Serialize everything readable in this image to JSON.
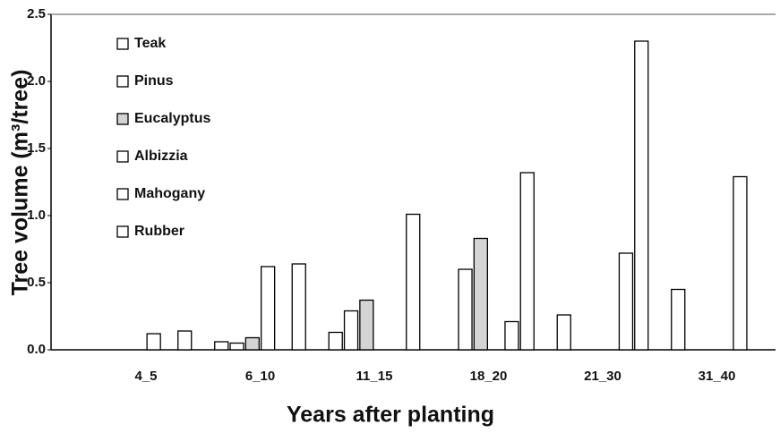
{
  "chart_data": {
    "type": "bar",
    "x_label": "Years after planting",
    "y_label": "Tree volume (m³/tree)",
    "categories": [
      "4_5",
      "6_10",
      "11_15",
      "18_20",
      "21_30",
      "31_40"
    ],
    "series": [
      {
        "name": "Teak",
        "color": "#ffffff",
        "values": [
          null,
          0.06,
          0.13,
          null,
          0.26,
          0.45
        ]
      },
      {
        "name": "Pinus",
        "color": "#ffffff",
        "values": [
          null,
          0.05,
          0.29,
          0.6,
          null,
          null
        ]
      },
      {
        "name": "Eucalyptus",
        "color": "#d4d4d4",
        "values": [
          null,
          0.09,
          0.37,
          0.83,
          null,
          null
        ]
      },
      {
        "name": "Albizzia",
        "color": "#ffffff",
        "values": [
          0.12,
          0.62,
          null,
          null,
          null,
          null
        ]
      },
      {
        "name": "Mahogany",
        "color": "#ffffff",
        "values": [
          null,
          null,
          null,
          0.21,
          0.72,
          1.29
        ]
      },
      {
        "name": "Rubber",
        "color": "#ffffff",
        "values": [
          0.14,
          0.64,
          1.01,
          1.32,
          2.3,
          null
        ]
      }
    ],
    "ylim": [
      0,
      2.5
    ],
    "yticks": [
      {
        "value": 0,
        "label": "0.0"
      },
      0.5,
      {
        "value": 1,
        "label": "1.0"
      },
      1.5,
      {
        "value": 2,
        "label": "2.0"
      },
      2.5
    ],
    "grid": false,
    "legend": "upper left"
  }
}
